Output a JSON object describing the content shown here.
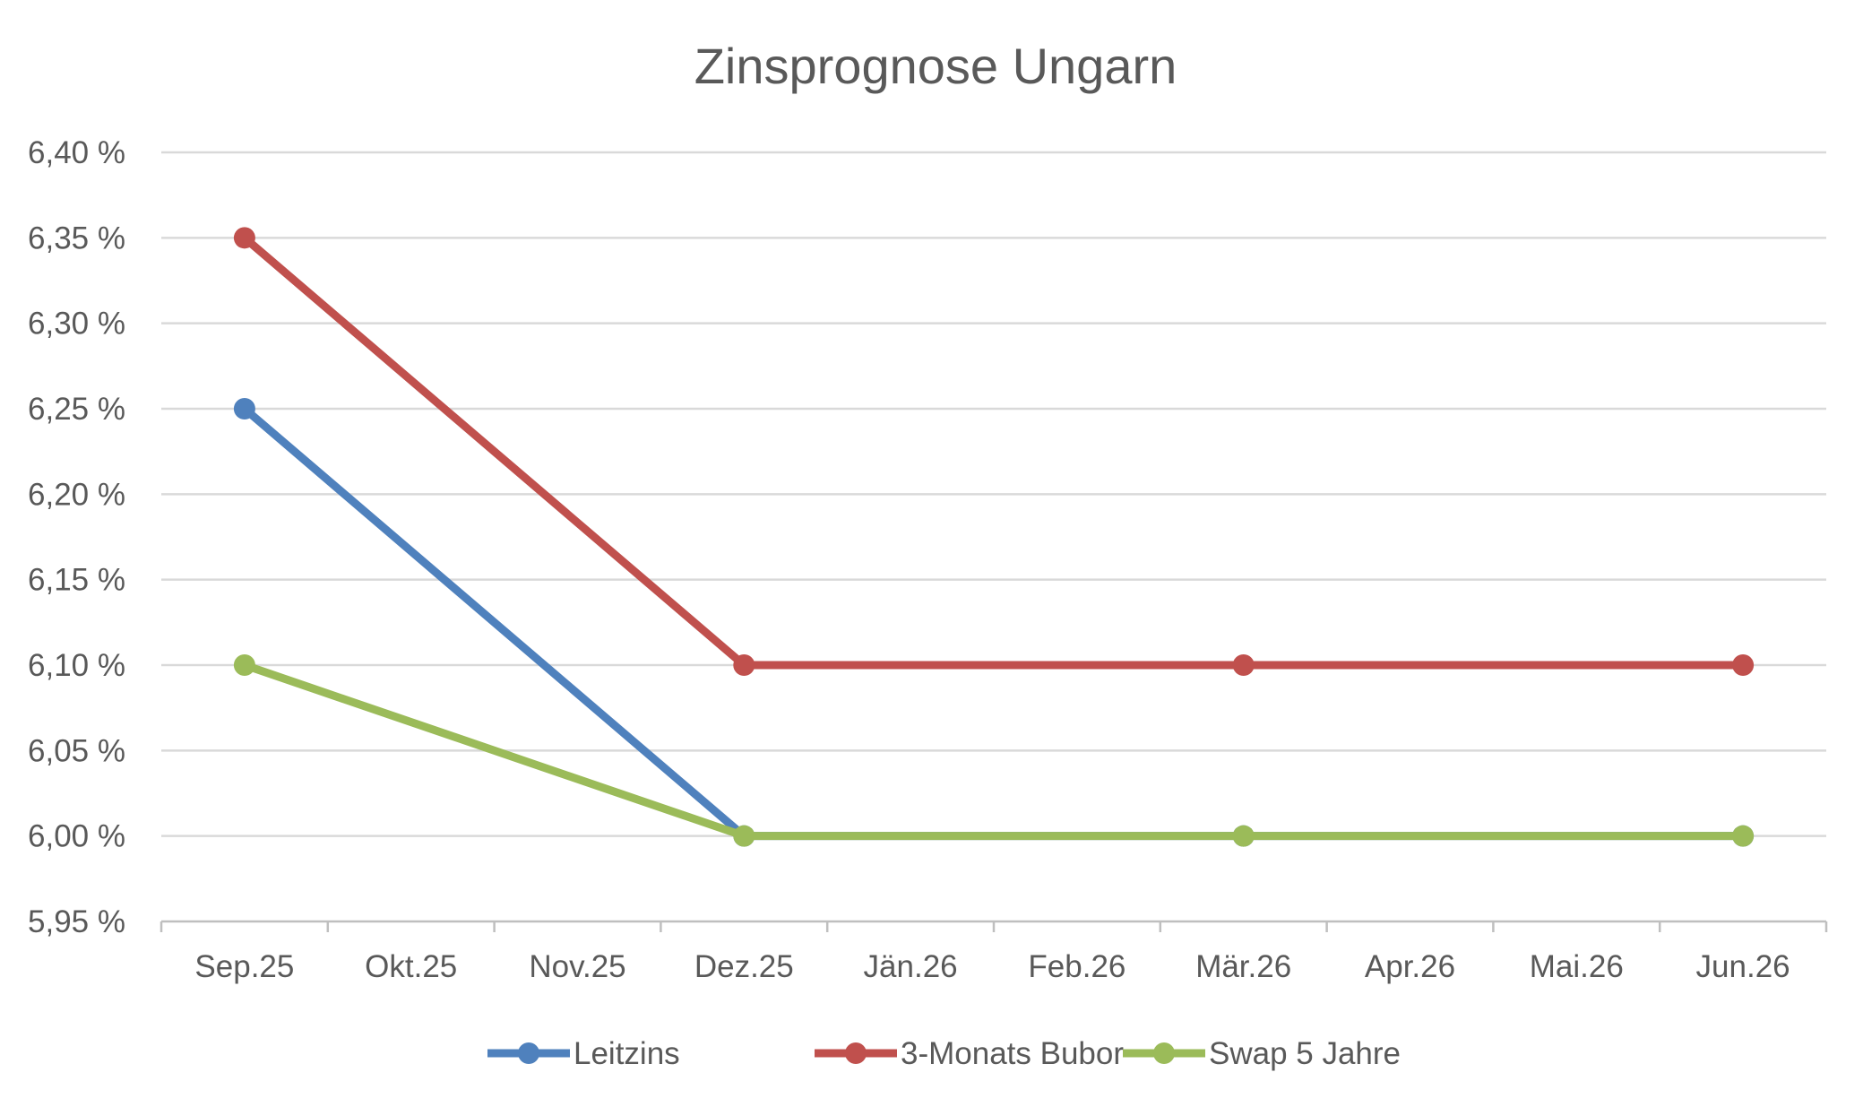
{
  "chart_data": {
    "type": "line",
    "title": "Zinsprognose Ungarn",
    "xlabel": "",
    "ylabel": "",
    "categories": [
      "Sep.25",
      "Okt.25",
      "Nov.25",
      "Dez.25",
      "Jän.26",
      "Feb.26",
      "Mär.26",
      "Apr.26",
      "Mai.26",
      "Jun.26"
    ],
    "y_ticks": [
      "5,95 %",
      "6,00 %",
      "6,05 %",
      "6,10 %",
      "6,15 %",
      "6,20 %",
      "6,25 %",
      "6,30 %",
      "6,35 %",
      "6,40 %"
    ],
    "ylim": [
      5.95,
      6.4
    ],
    "grid": true,
    "legend_position": "bottom",
    "series": [
      {
        "name": "Leitzins",
        "color": "#4f81bd",
        "values": [
          6.25,
          null,
          null,
          6.0,
          null,
          null,
          6.0,
          null,
          null,
          6.0
        ]
      },
      {
        "name": "3-Monats Bubor",
        "color": "#c0504d",
        "values": [
          6.35,
          null,
          null,
          6.1,
          null,
          null,
          6.1,
          null,
          null,
          6.1
        ]
      },
      {
        "name": "Swap 5 Jahre",
        "color": "#9bbb59",
        "values": [
          6.1,
          null,
          null,
          6.0,
          null,
          null,
          6.0,
          null,
          null,
          6.0
        ]
      }
    ]
  }
}
